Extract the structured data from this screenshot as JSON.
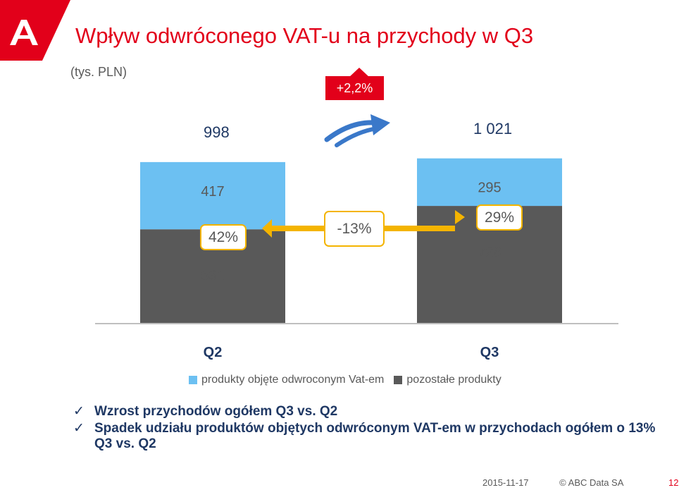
{
  "header": {
    "title": "Wpływ odwróconego VAT-u na przychody w Q3",
    "unit": "(tys. PLN)"
  },
  "growth_badge": "+2,2%",
  "totals": {
    "q2": "998",
    "q3": "1 021"
  },
  "share_labels": {
    "q2": "42%",
    "q3": "29%",
    "change": "-13%"
  },
  "legend": {
    "series1": "produkty objęte odwroconym Vat-em",
    "series2": "pozostałe produkty"
  },
  "bullets": [
    "Wzrost przychodów ogółem Q3 vs. Q2",
    "Spadek udziału produktów objętych odwróconym VAT-em w przychodach ogółem o 13% Q3 vs. Q2"
  ],
  "footer": {
    "date": "2015-11-17",
    "company": "© ABC Data SA",
    "page": "12"
  },
  "colors": {
    "series1": "#6cc0f2",
    "series2": "#595959",
    "accent": "#e2001a",
    "arrow": "#f4b400",
    "growth_arrow": "#3a78c9"
  },
  "chart_data": {
    "type": "bar",
    "stacked": true,
    "categories": [
      "Q2",
      "Q3"
    ],
    "series": [
      {
        "name": "pozostałe produkty",
        "values": [
          581,
          726
        ]
      },
      {
        "name": "produkty objęte odwroconym Vat-em",
        "values": [
          417,
          295
        ]
      }
    ],
    "totals": [
      998,
      1021
    ],
    "ylim": [
      0,
      1050
    ],
    "legend_position": "bottom"
  }
}
